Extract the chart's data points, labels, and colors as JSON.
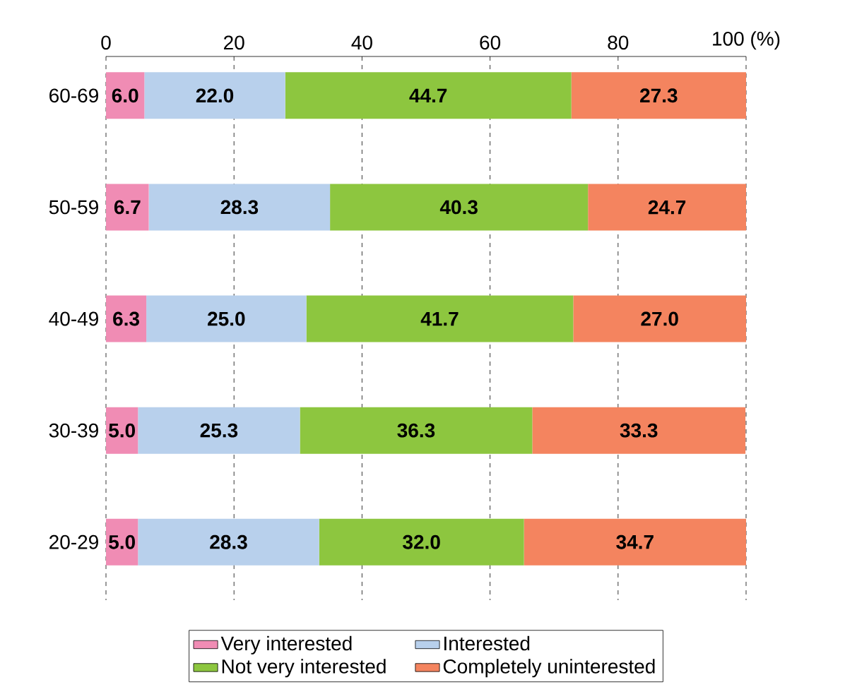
{
  "chart_data": {
    "type": "bar",
    "orientation": "horizontal",
    "stacked": true,
    "categories": [
      "60-69",
      "50-59",
      "40-49",
      "30-39",
      "20-29"
    ],
    "series": [
      {
        "name": "Very interested",
        "color": "#f08cb4",
        "values": [
          6.0,
          6.7,
          6.3,
          5.0,
          5.0
        ],
        "value_labels": [
          "6.0",
          "6.7",
          "6.3",
          "5.0",
          "5.0"
        ]
      },
      {
        "name": "Interested",
        "color": "#b8d0ec",
        "values": [
          22.0,
          28.3,
          25.0,
          25.3,
          28.3
        ],
        "value_labels": [
          "22.0",
          "28.3",
          "25.0",
          "25.3",
          "28.3"
        ]
      },
      {
        "name": "Not very interested",
        "color": "#8dc63f",
        "values": [
          44.7,
          40.3,
          41.7,
          36.3,
          32.0
        ],
        "value_labels": [
          "44.7",
          "40.3",
          "41.7",
          "36.3",
          "32.0"
        ]
      },
      {
        "name": "Completely uninterested",
        "color": "#f4845f",
        "values": [
          27.3,
          24.7,
          27.0,
          33.3,
          34.7
        ],
        "value_labels": [
          "27.3",
          "24.7",
          "27.0",
          "33.3",
          "34.7"
        ]
      }
    ],
    "xlim": [
      0,
      100
    ],
    "xticks": [
      0,
      20,
      40,
      60,
      80,
      {
        "value": 100,
        "label": "100 (%)"
      }
    ],
    "grid": "x",
    "legend": "bottom"
  }
}
